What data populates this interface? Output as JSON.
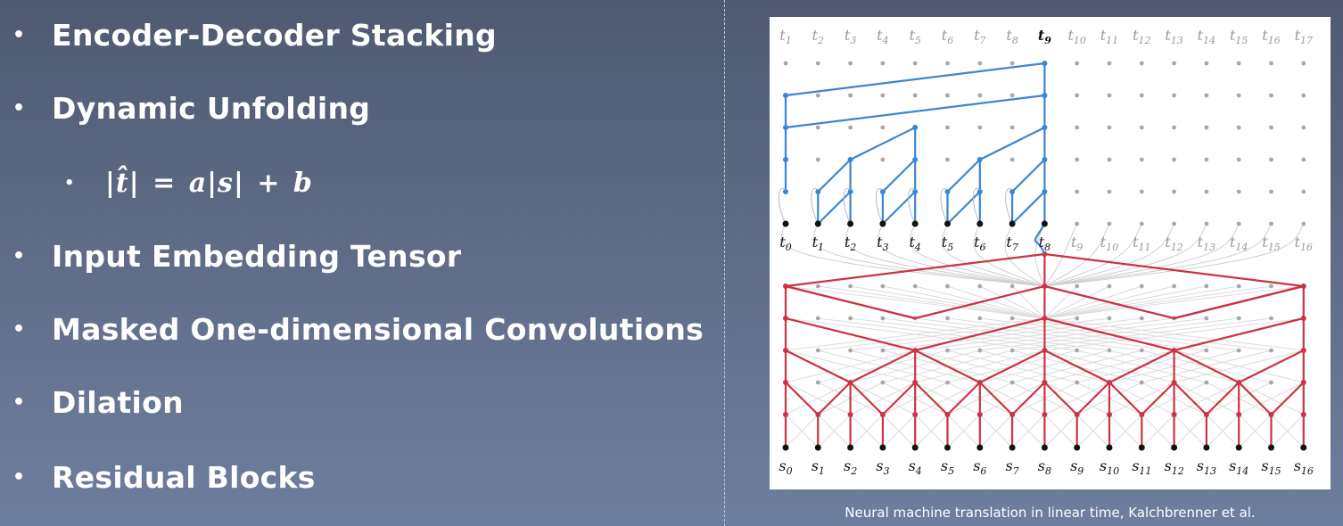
{
  "bullets": [
    {
      "label": "Encoder-Decoder Stacking",
      "level": 1
    },
    {
      "label": "Dynamic Unfolding",
      "level": 1
    },
    {
      "label": "|t̂| = a|s| + b",
      "level": 2
    },
    {
      "label": "Input Embedding Tensor",
      "level": 1
    },
    {
      "label": "Masked One-dimensional Convolutions",
      "level": 1
    },
    {
      "label": "Dilation",
      "level": 1
    },
    {
      "label": "Residual Blocks",
      "level": 1
    }
  ],
  "bullet_marker": "•",
  "figure": {
    "decoder_output_labels": [
      "t1",
      "t2",
      "t3",
      "t4",
      "t5",
      "t6",
      "t7",
      "t8",
      "t9",
      "t10",
      "t11",
      "t12",
      "t13",
      "t14",
      "t15",
      "t16",
      "t17"
    ],
    "decoder_input_labels": [
      "t0",
      "t1",
      "t2",
      "t3",
      "t4",
      "t5",
      "t6",
      "t7",
      "t8",
      "t9",
      "t10",
      "t11",
      "t12",
      "t13",
      "t14",
      "t15",
      "t16"
    ],
    "source_labels": [
      "s0",
      "s1",
      "s2",
      "s3",
      "s4",
      "s5",
      "s6",
      "s7",
      "s8",
      "s9",
      "s10",
      "s11",
      "s12",
      "s13",
      "s14",
      "s15",
      "s16"
    ],
    "current_step_index": 8,
    "decoder_color": "#3a86d0",
    "encoder_color": "#cc3344",
    "inactive_color": "#a8a8a8"
  },
  "caption": "Neural machine translation in linear time, Kalchbrenner et al."
}
